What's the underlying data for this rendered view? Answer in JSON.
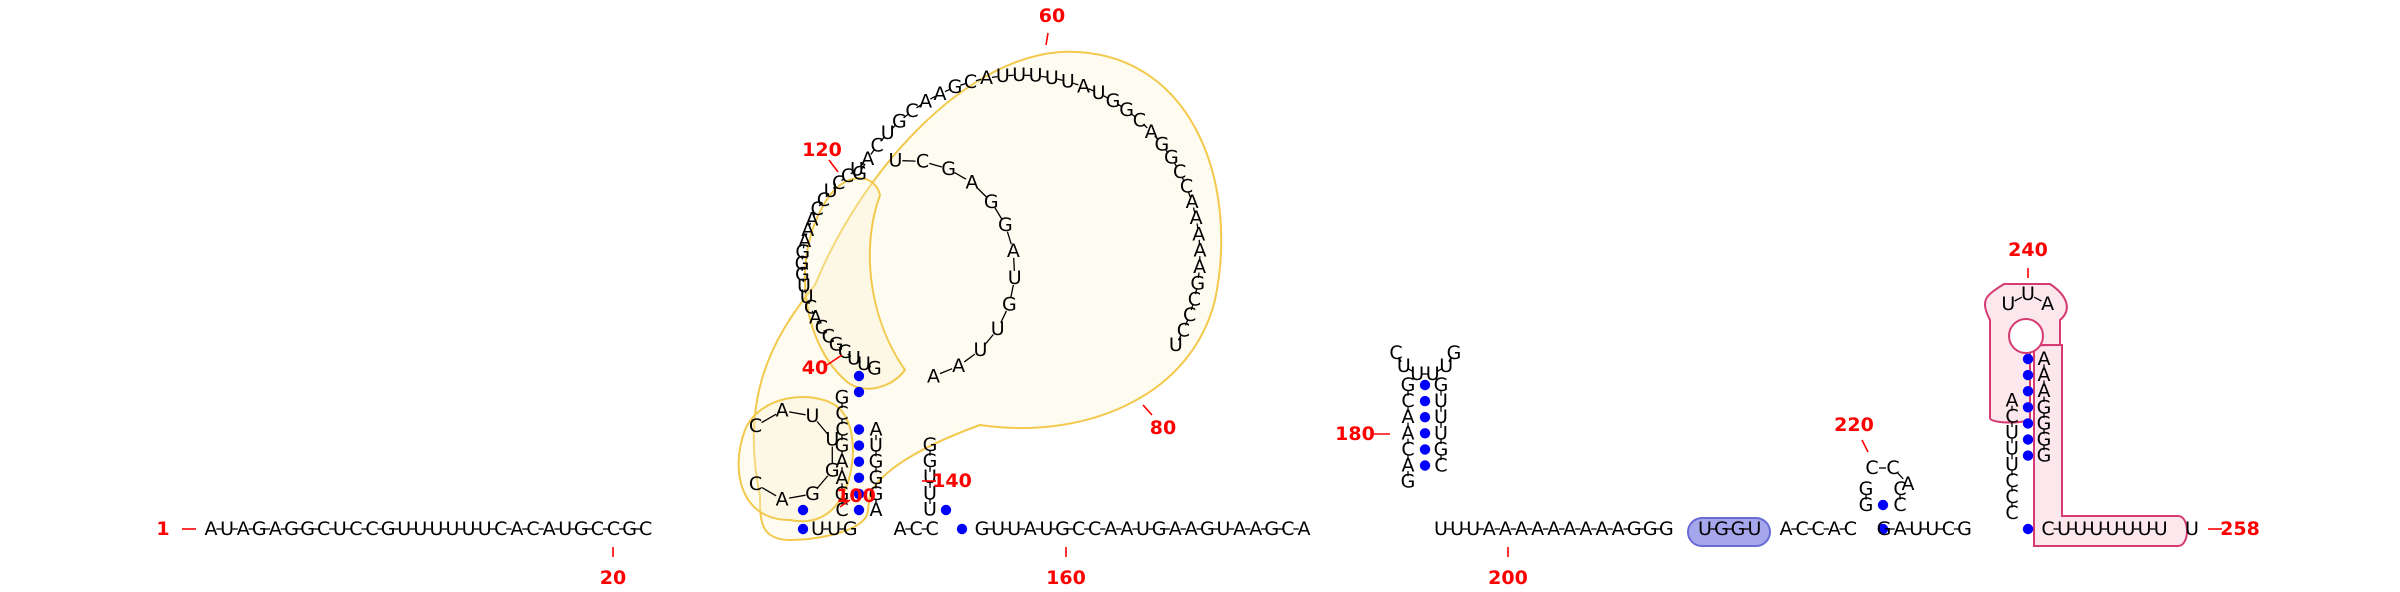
{
  "colors": {
    "nucleotide": "#000000",
    "position_label": "#ff0000",
    "base_pair_dot": "#0000ff",
    "region_yellow_stroke": "#f2c94c",
    "region_yellow_fill": "#fdf3d3",
    "region_blue_fill": "#9797ea",
    "region_blue_stroke": "#6b6bd6",
    "region_pink_fill": "#f8d3dd",
    "region_pink_stroke": "#d63a73"
  },
  "position_labels": [
    "1",
    "20",
    "40",
    "60",
    "80",
    "100",
    "120",
    "140",
    "160",
    "180",
    "200",
    "220",
    "240",
    "258"
  ],
  "strand": {
    "a": "AUAGAGGCUCCGUUUUUUCACAUGCCGC",
    "b": "UUG",
    "c": "ACC",
    "d": "GUUAUGCCAAUGAAGUAAGCA",
    "e": "UUUAAAAAAAAAGGG",
    "f": "UGGU",
    "g": "ACCAC",
    "h": "GAUUCG",
    "i": "CUUUUUUU",
    "j": "U"
  },
  "hairpin_180": {
    "left": "GCAACAG",
    "loop": "CUUUUG",
    "right": "GUUUGC"
  },
  "hairpin_220": {
    "left": "GG",
    "loop": "CCA",
    "right": "CC"
  },
  "hairpin_240": {
    "left": "CCCUUUCA",
    "loop": "UUA",
    "right": "AAAGGGG"
  },
  "multiloop": {
    "ring_upper": "GACUGCAAGCAUUUUUAUGGCAGGCCAAAAAGCCCU",
    "ring_lower": "UCGAGGAUGUUAA",
    "outer_arc": "UCCUCCAAAGGGUUCACCGCUUG",
    "stem_left": "CGAAGCCG",
    "stem_right": "AGGGUA",
    "inner_extra": "GGUUU"
  }
}
